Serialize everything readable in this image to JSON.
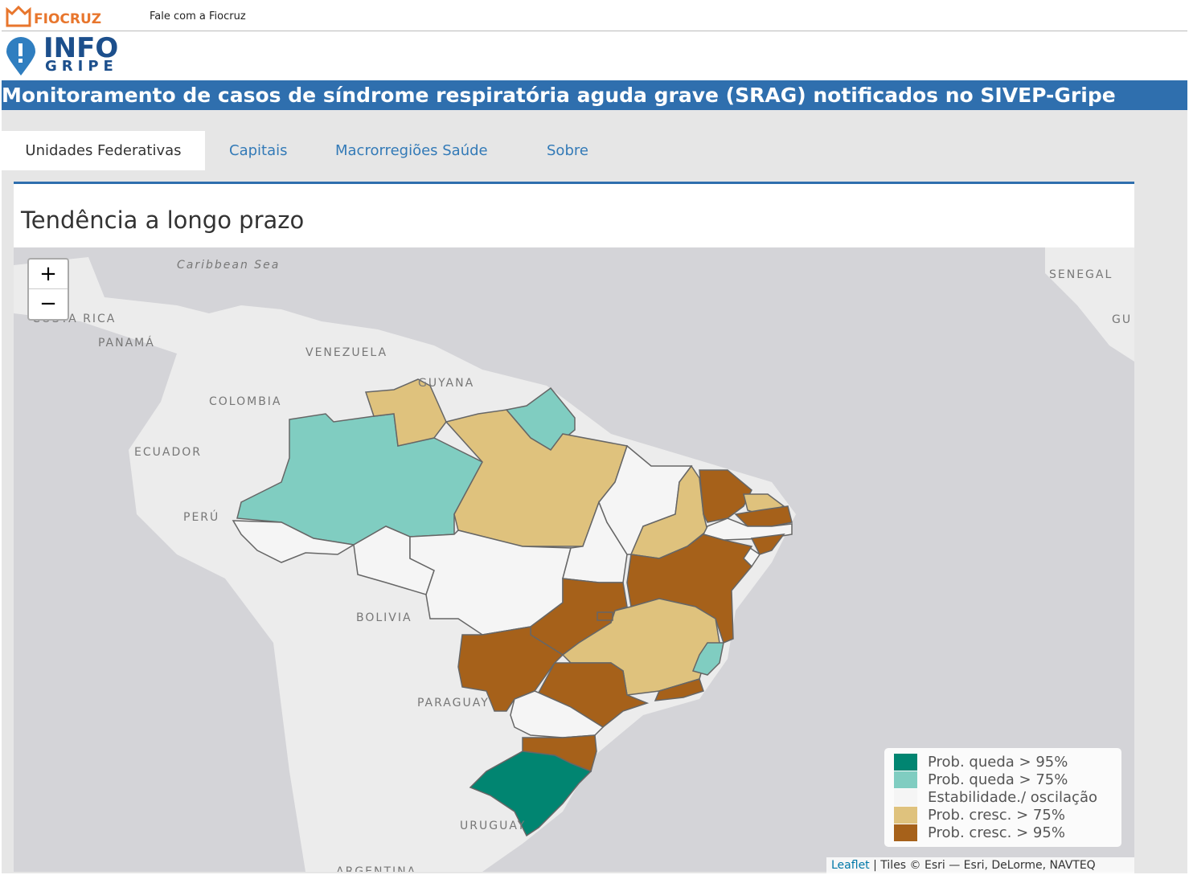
{
  "header": {
    "brand": "FIOCRUZ",
    "link": "Fale com a Fiocruz",
    "logo_top": "INFO",
    "logo_bottom": "GRIPE",
    "title": "Monitoramento de casos de síndrome respiratória aguda grave (SRAG) notificados no SIVEP-Gripe"
  },
  "tabs": [
    "Unidades Federativas",
    "Capitais",
    "Macrorregiões Saúde",
    "Sobre"
  ],
  "panel": {
    "title": "Tendência a longo prazo"
  },
  "map": {
    "zoom_in": "+",
    "zoom_out": "−",
    "labels": [
      "Caribbean Sea",
      "COSTA RICA",
      "PANAMÁ",
      "VENEZUELA",
      "GUYANA",
      "COLOMBIA",
      "ECUADOR",
      "PERÚ",
      "BOLIVIA",
      "PARAGUAY",
      "URUGUAY",
      "ARGENTINA",
      "SENEGAL",
      "GU"
    ],
    "legend": [
      {
        "label": "Prob. queda > 95%",
        "color": "#018571"
      },
      {
        "label": "Prob. queda > 75%",
        "color": "#80cdc1"
      },
      {
        "label": "Estabilidade./ oscilação",
        "color": "#f5f5f5"
      },
      {
        "label": "Prob. cresc. > 75%",
        "color": "#dfc27d"
      },
      {
        "label": "Prob. cresc. > 95%",
        "color": "#a6611a"
      }
    ],
    "attribution": {
      "link": "Leaflet",
      "text": "| Tiles © Esri — Esri, DeLorme, NAVTEQ"
    }
  }
}
